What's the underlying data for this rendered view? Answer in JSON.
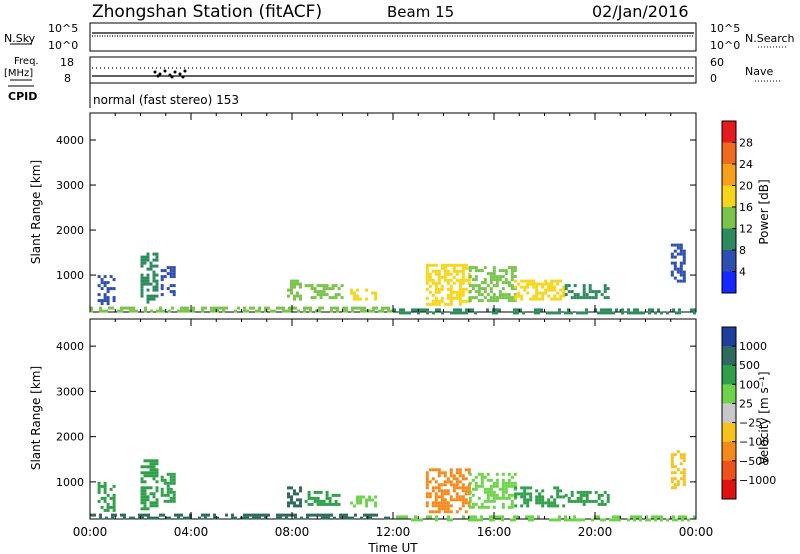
{
  "header": {
    "title": "Zhongshan Station (fitACF)",
    "beam": "Beam 15",
    "date": "02/Jan/2016"
  },
  "strip": {
    "nsky_label": "N.Sky",
    "nsearch_label": "N.Search",
    "nsky_ticks": [
      "10^5",
      "10^0"
    ],
    "nsearch_ticks": [
      "10^5",
      "10^0"
    ],
    "freq_label_1": "Freq.",
    "freq_label_2": "[MHz]",
    "freq_ticks": [
      "18",
      "8"
    ],
    "nave_label": "Nave",
    "nave_ticks": [
      "60",
      "0"
    ],
    "cpid_label": "CPID",
    "cpid_value": "normal (fast stereo) 153"
  },
  "chart_data": [
    {
      "type": "heatmap",
      "panel": "power",
      "ylabel": "Slant Range [km]",
      "yticks": [
        "4000",
        "3000",
        "2000",
        "1000"
      ],
      "ylim": [
        180,
        4600
      ],
      "xlim_hours": [
        0,
        24
      ],
      "colorbar_label": "Power [dB]",
      "colorbar_ticks": [
        "28",
        "24",
        "20",
        "16",
        "12",
        "8",
        "4"
      ],
      "colorbar_colors": [
        "#e41a1c",
        "#f06a1e",
        "#f7a01c",
        "#f6d51a",
        "#79c44b",
        "#2e8b5f",
        "#2f4fb0",
        "#1428ff"
      ],
      "echoes": [
        {
          "t": 0.3,
          "t2": 0.9,
          "r": 350,
          "r2": 1000,
          "v": 7
        },
        {
          "t": 2.0,
          "t2": 2.7,
          "r": 400,
          "r2": 1500,
          "v": 8
        },
        {
          "t": 2.8,
          "t2": 3.3,
          "r": 600,
          "r2": 1200,
          "v": 7
        },
        {
          "t": 7.8,
          "t2": 8.3,
          "r": 500,
          "r2": 900,
          "v": 12
        },
        {
          "t": 8.5,
          "t2": 10.0,
          "r": 500,
          "r2": 800,
          "v": 14
        },
        {
          "t": 10.3,
          "t2": 11.3,
          "r": 450,
          "r2": 700,
          "v": 17
        },
        {
          "t": 13.3,
          "t2": 15.0,
          "r": 350,
          "r2": 1250,
          "v": 16
        },
        {
          "t": 15.0,
          "t2": 16.8,
          "r": 450,
          "r2": 1200,
          "v": 14
        },
        {
          "t": 16.8,
          "t2": 18.8,
          "r": 500,
          "r2": 900,
          "v": 18
        },
        {
          "t": 18.8,
          "t2": 20.5,
          "r": 500,
          "r2": 800,
          "v": 10
        },
        {
          "t": 23.0,
          "t2": 23.5,
          "r": 900,
          "r2": 1700,
          "v": 7
        },
        {
          "t": 0.0,
          "t2": 12.0,
          "r": 190,
          "r2": 300,
          "v": 15
        },
        {
          "t": 12.0,
          "t2": 24.0,
          "r": 190,
          "r2": 260,
          "v": 9
        }
      ]
    },
    {
      "type": "heatmap",
      "panel": "velocity",
      "ylabel": "Slant Range [km]",
      "yticks": [
        "4000",
        "3000",
        "2000",
        "1000"
      ],
      "ylim": [
        180,
        4600
      ],
      "xlim_hours": [
        0,
        24
      ],
      "xticks": [
        "00:00",
        "04:00",
        "08:00",
        "12:00",
        "16:00",
        "20:00",
        "00:00"
      ],
      "xlabel": "Time UT",
      "colorbar_label": "Velocity [m s⁻¹]",
      "colorbar_ticks": [
        "1000",
        "500",
        "100",
        "25",
        "−25",
        "−100",
        "−500",
        "−1000"
      ],
      "colorbar_colors": [
        "#1f3fa0",
        "#2e6b5e",
        "#2f9f4a",
        "#6dd34a",
        "#c8c8c8",
        "#f6c21c",
        "#f58a1c",
        "#f0501c",
        "#e01010"
      ],
      "echoes": [
        {
          "t": 0.3,
          "t2": 0.9,
          "r": 350,
          "r2": 1000,
          "v": 200
        },
        {
          "t": 2.0,
          "t2": 2.7,
          "r": 400,
          "r2": 1500,
          "v": 400
        },
        {
          "t": 2.8,
          "t2": 3.3,
          "r": 600,
          "r2": 1200,
          "v": 150
        },
        {
          "t": 7.8,
          "t2": 8.3,
          "r": 500,
          "r2": 900,
          "v": 600
        },
        {
          "t": 8.5,
          "t2": 10.0,
          "r": 500,
          "r2": 800,
          "v": 300
        },
        {
          "t": 10.3,
          "t2": 11.3,
          "r": 450,
          "r2": 700,
          "v": 80
        },
        {
          "t": 13.3,
          "t2": 15.0,
          "r": 350,
          "r2": 1300,
          "v": -300
        },
        {
          "t": 15.0,
          "t2": 16.8,
          "r": 450,
          "r2": 1200,
          "v": 60
        },
        {
          "t": 16.8,
          "t2": 18.8,
          "r": 500,
          "r2": 900,
          "v": 250
        },
        {
          "t": 18.8,
          "t2": 20.5,
          "r": 500,
          "r2": 800,
          "v": 150
        },
        {
          "t": 23.0,
          "t2": 23.5,
          "r": 900,
          "r2": 1700,
          "v": -80
        },
        {
          "t": 0.0,
          "t2": 12.0,
          "r": 190,
          "r2": 300,
          "v": 500
        },
        {
          "t": 12.0,
          "t2": 24.0,
          "r": 190,
          "r2": 260,
          "v": 30
        }
      ]
    }
  ]
}
